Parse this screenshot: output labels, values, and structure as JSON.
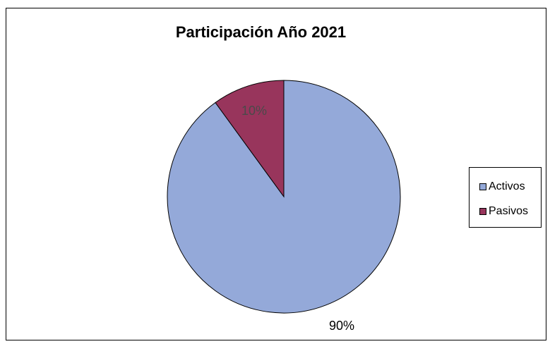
{
  "chart_data": {
    "type": "pie",
    "title": "Participación Año 2021",
    "categories": [
      "Activos",
      "Pasivos"
    ],
    "values": [
      90,
      10
    ],
    "labels": [
      "90%",
      "10%"
    ],
    "colors": [
      "#94a9d9",
      "#98355c"
    ],
    "legend_position": "right"
  }
}
